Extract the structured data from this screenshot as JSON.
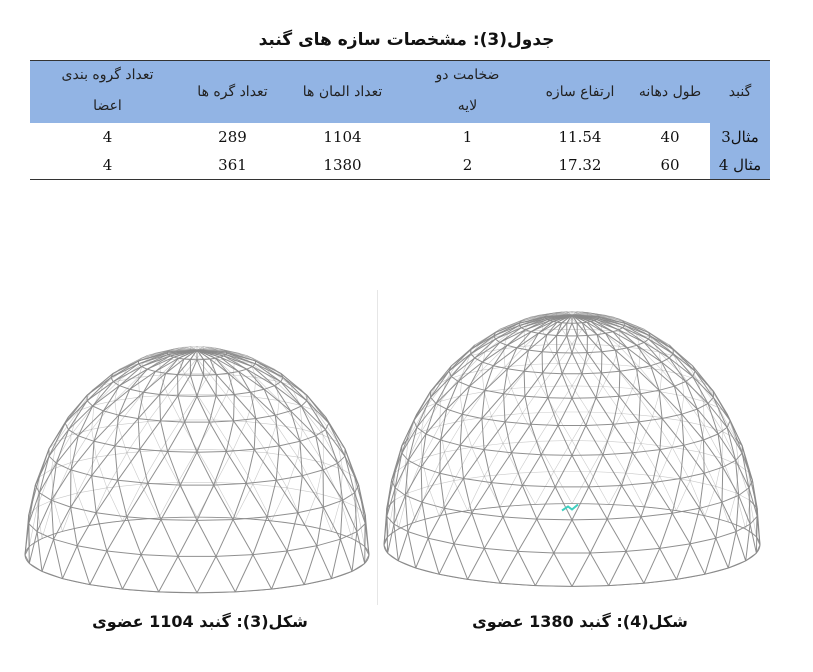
{
  "table": {
    "title": "جدول(3): مشخصات سازه های گنبد",
    "headers": {
      "dome": "گنبد",
      "span": "طول دهانه",
      "height": "ارتفاع سازه",
      "layer_top": "ضخامت دو",
      "layer_bottom": "لایه",
      "elements": "تعداد المان ها",
      "nodes": "تعداد گره ها",
      "groups_top": "تعداد گروه بندی",
      "groups_bottom": "اعضا"
    },
    "rows": [
      {
        "dome": "مثال3",
        "span": "40",
        "height": "11.54",
        "layer": "1",
        "elements": "1104",
        "nodes": "289",
        "groups": "4"
      },
      {
        "dome": "مثال 4",
        "span": "60",
        "height": "17.32",
        "layer": "2",
        "elements": "1380",
        "nodes": "361",
        "groups": "4"
      }
    ]
  },
  "figures": {
    "left_caption": "شکل(3): گنبد 1104 عضوی",
    "right_caption": "شکل(4): گنبد 1380 عضوی",
    "line_color": "#8a8a8a",
    "marker_color": "#3fd0c0"
  }
}
